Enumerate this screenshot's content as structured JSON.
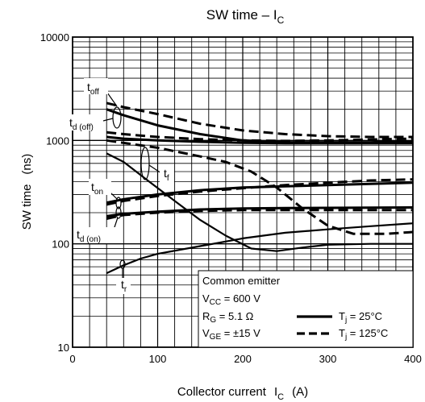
{
  "chart_data": {
    "type": "line",
    "title": "SW time – I",
    "title_subscript": "C",
    "xlabel": "Collector current",
    "xlabel_symbol": "I",
    "xlabel_subscript": "C",
    "xlabel_unit": "(A)",
    "ylabel": "SW time",
    "ylabel_unit": "(ns)",
    "xlim": [
      0,
      400
    ],
    "ylim": [
      10,
      10000
    ],
    "y_scale": "log",
    "grid": true,
    "x_ticks": [
      "0",
      "100",
      "200",
      "300",
      "400"
    ],
    "y_ticks": [
      "10",
      "100",
      "1000",
      "10000"
    ],
    "legend": {
      "placement": "bottom-right",
      "conditions": [
        {
          "text": "Common emitter",
          "sym": "",
          "sub": "",
          "rest": ""
        },
        {
          "text": "",
          "sym": "V",
          "sub": "CC",
          "rest": " = 600 V"
        },
        {
          "text": "",
          "sym": "R",
          "sub": "G",
          "rest": " = 5.1 Ω"
        },
        {
          "text": "",
          "sym": "V",
          "sub": "GE",
          "rest": " = ±15 V"
        }
      ],
      "styles": [
        {
          "sym": "T",
          "sub": "j",
          "rest": " = 25°C",
          "dash": "solid"
        },
        {
          "sym": "T",
          "sub": "j",
          "rest": " = 125°C",
          "dash": "dashed"
        }
      ]
    },
    "annotations": [
      {
        "sym": "t",
        "sub": "off"
      },
      {
        "sym": "t",
        "sub": "d (off)"
      },
      {
        "sym": "t",
        "sub": "f"
      },
      {
        "sym": "t",
        "sub": "on"
      },
      {
        "sym": "t",
        "sub": "d (on)"
      },
      {
        "sym": "t",
        "sub": "r"
      }
    ],
    "series": [
      {
        "curve": "toff",
        "style": "solid",
        "x": [
          40,
          60,
          100,
          150,
          200,
          250,
          300,
          350,
          400
        ],
        "y": [
          2000,
          1750,
          1400,
          1150,
          1000,
          960,
          960,
          960,
          980
        ]
      },
      {
        "curve": "toff",
        "style": "dashed",
        "x": [
          40,
          60,
          100,
          150,
          200,
          250,
          300,
          350,
          400
        ],
        "y": [
          2300,
          2100,
          1800,
          1450,
          1250,
          1150,
          1100,
          1080,
          1080
        ]
      },
      {
        "curve": "td(off)",
        "style": "solid",
        "x": [
          40,
          60,
          100,
          150,
          200,
          250,
          300,
          350,
          400
        ],
        "y": [
          1080,
          1040,
          1000,
          970,
          950,
          940,
          940,
          940,
          940
        ]
      },
      {
        "curve": "td(off)",
        "style": "dashed",
        "x": [
          40,
          60,
          100,
          150,
          200,
          250,
          300,
          350,
          400
        ],
        "y": [
          1200,
          1150,
          1080,
          1030,
          1000,
          990,
          1000,
          1020,
          1040
        ]
      },
      {
        "curve": "tf",
        "style": "solid",
        "x": [
          40,
          60,
          90,
          120,
          150,
          180,
          210,
          240,
          270,
          300,
          350,
          400
        ],
        "y": [
          750,
          620,
          400,
          260,
          170,
          120,
          90,
          85,
          92,
          98,
          100,
          100
        ]
      },
      {
        "curve": "tf",
        "style": "dashed",
        "x": [
          40,
          100,
          150,
          180,
          210,
          240,
          270,
          300,
          330,
          370,
          400
        ],
        "y": [
          1000,
          850,
          700,
          620,
          500,
          350,
          220,
          150,
          125,
          125,
          130
        ]
      },
      {
        "curve": "ton",
        "style": "solid",
        "x": [
          40,
          60,
          100,
          150,
          200,
          250,
          300,
          350,
          400
        ],
        "y": [
          250,
          270,
          300,
          330,
          350,
          360,
          370,
          380,
          390
        ]
      },
      {
        "curve": "ton",
        "style": "dashed",
        "x": [
          40,
          60,
          100,
          150,
          200,
          250,
          300,
          350,
          400
        ],
        "y": [
          240,
          260,
          290,
          320,
          345,
          370,
          390,
          410,
          420
        ]
      },
      {
        "curve": "td(on)",
        "style": "solid",
        "x": [
          40,
          60,
          100,
          150,
          200,
          250,
          300,
          350,
          400
        ],
        "y": [
          185,
          195,
          205,
          215,
          220,
          222,
          223,
          224,
          225
        ]
      },
      {
        "curve": "td(on)",
        "style": "dashed",
        "x": [
          40,
          60,
          100,
          150,
          200,
          250,
          300,
          350,
          400
        ],
        "y": [
          175,
          190,
          200,
          208,
          212,
          212,
          212,
          212,
          212
        ]
      },
      {
        "curve": "tr",
        "style": "solid",
        "x": [
          40,
          60,
          80,
          100,
          150,
          200,
          250,
          300,
          350,
          400
        ],
        "y": [
          52,
          62,
          72,
          80,
          95,
          113,
          128,
          138,
          148,
          158
        ]
      }
    ]
  }
}
